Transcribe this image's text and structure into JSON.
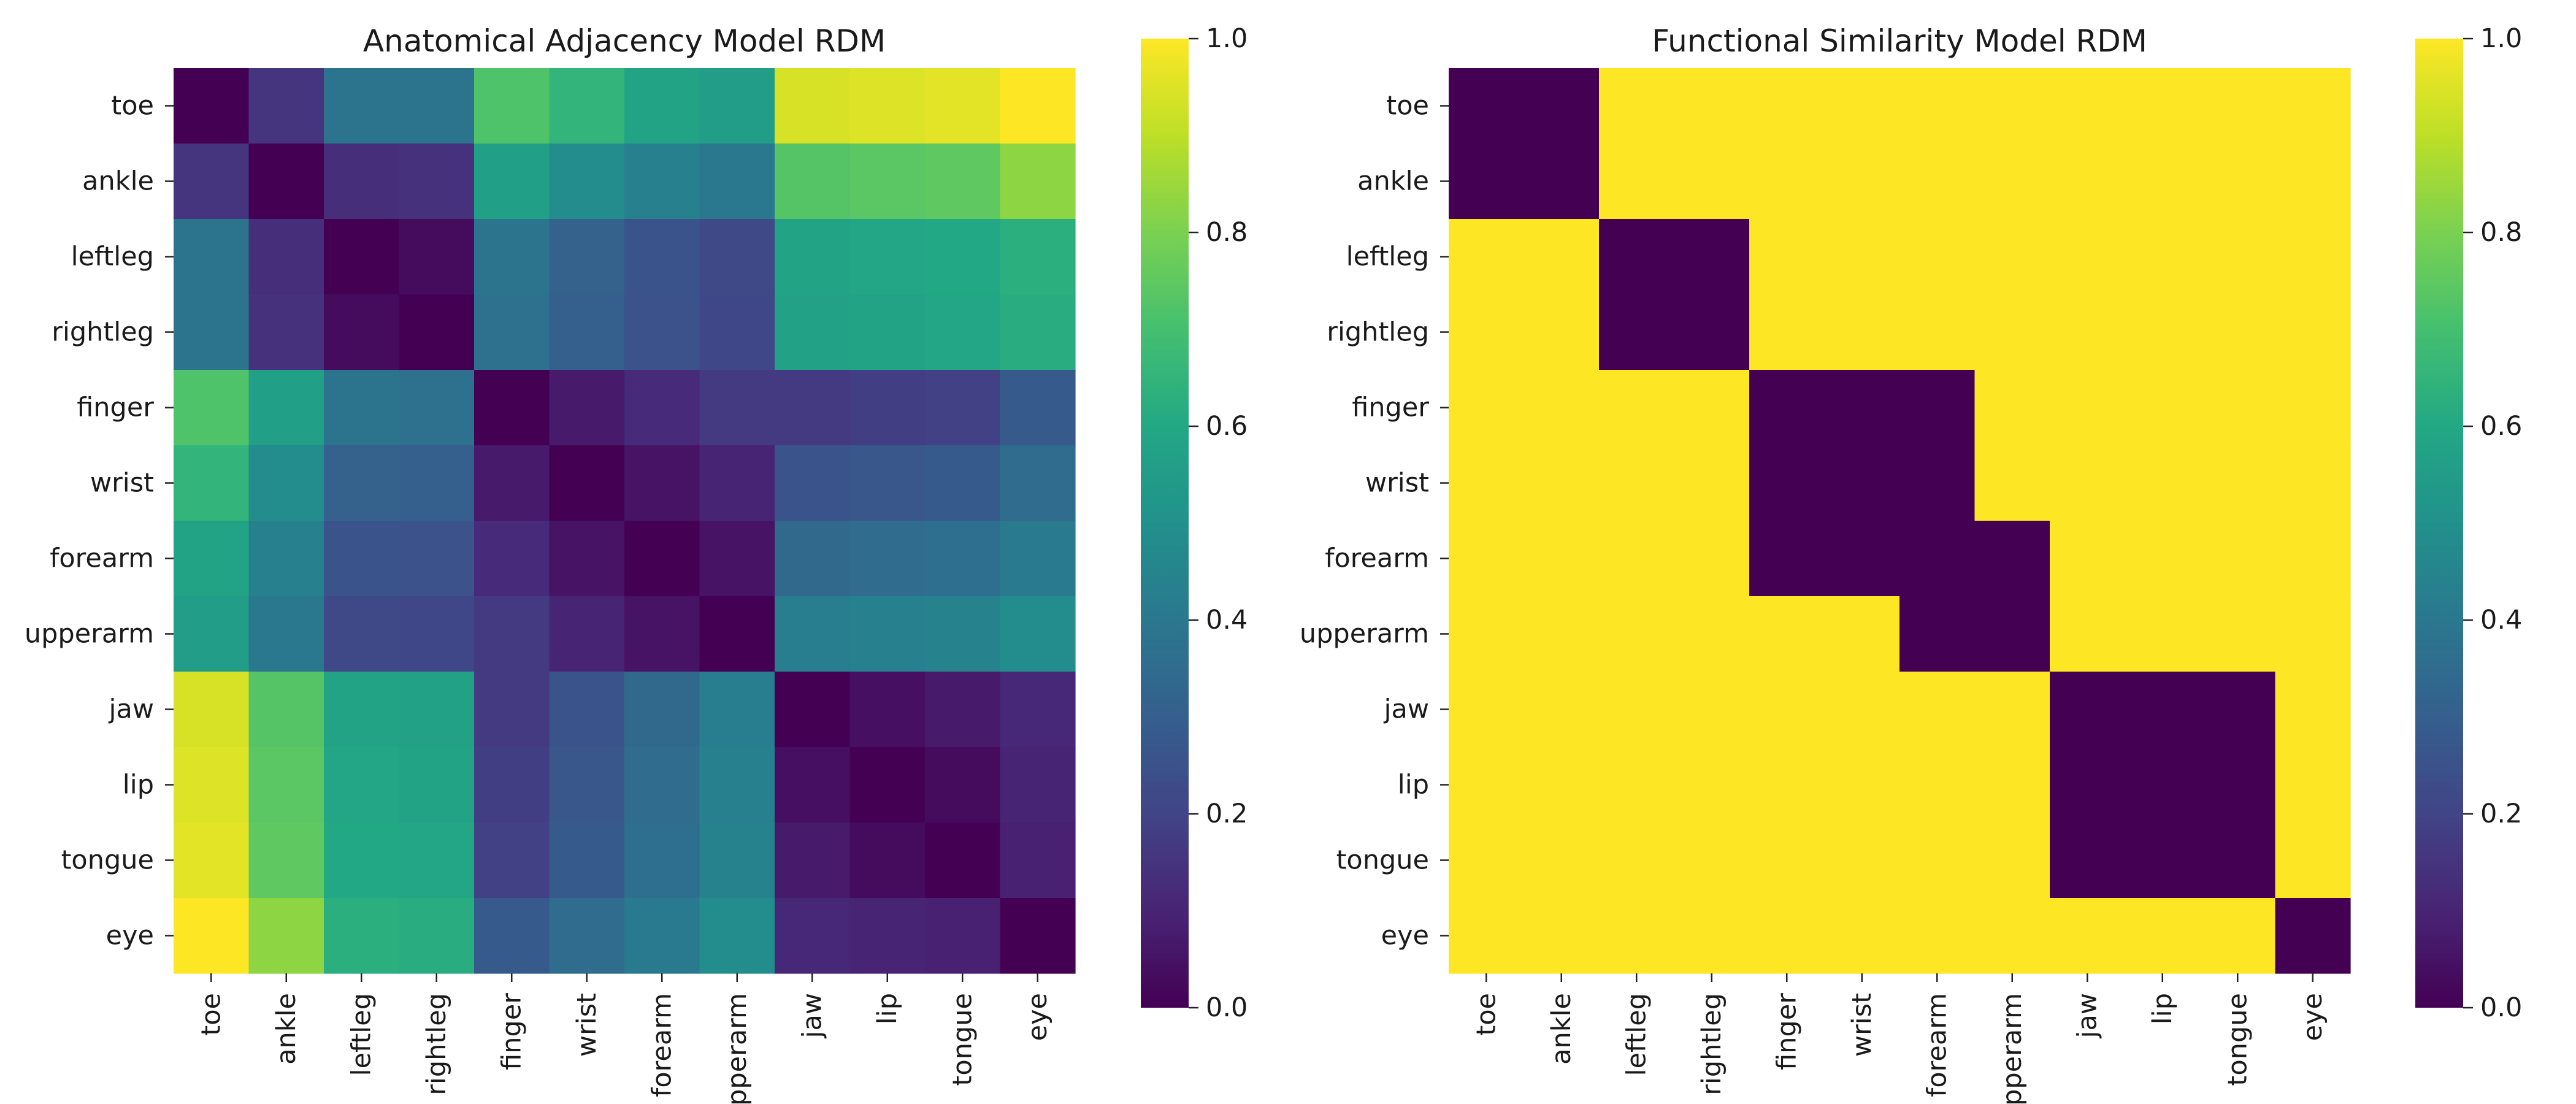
{
  "colormap": "viridis",
  "chart_data": [
    {
      "type": "heatmap",
      "title": "Anatomical Adjacency Model RDM",
      "categories": [
        "toe",
        "ankle",
        "leftleg",
        "rightleg",
        "finger",
        "wrist",
        "forearm",
        "upperarm",
        "jaw",
        "lip",
        "tongue",
        "eye"
      ],
      "values": [
        [
          0.0,
          0.15,
          0.38,
          0.38,
          0.72,
          0.65,
          0.58,
          0.55,
          0.94,
          0.95,
          0.96,
          1.0
        ],
        [
          0.15,
          0.0,
          0.13,
          0.14,
          0.56,
          0.48,
          0.43,
          0.4,
          0.73,
          0.74,
          0.75,
          0.83
        ],
        [
          0.38,
          0.13,
          0.0,
          0.03,
          0.38,
          0.31,
          0.26,
          0.22,
          0.58,
          0.59,
          0.6,
          0.63
        ],
        [
          0.38,
          0.14,
          0.03,
          0.0,
          0.37,
          0.3,
          0.25,
          0.21,
          0.57,
          0.58,
          0.59,
          0.62
        ],
        [
          0.72,
          0.56,
          0.38,
          0.37,
          0.0,
          0.07,
          0.12,
          0.17,
          0.17,
          0.18,
          0.19,
          0.28
        ],
        [
          0.65,
          0.48,
          0.31,
          0.3,
          0.07,
          0.0,
          0.05,
          0.1,
          0.26,
          0.27,
          0.28,
          0.35
        ],
        [
          0.58,
          0.43,
          0.26,
          0.25,
          0.12,
          0.05,
          0.0,
          0.05,
          0.34,
          0.35,
          0.36,
          0.41
        ],
        [
          0.55,
          0.4,
          0.22,
          0.21,
          0.17,
          0.1,
          0.05,
          0.0,
          0.42,
          0.43,
          0.44,
          0.48
        ],
        [
          0.94,
          0.73,
          0.58,
          0.57,
          0.17,
          0.26,
          0.34,
          0.42,
          0.0,
          0.04,
          0.07,
          0.11
        ],
        [
          0.95,
          0.74,
          0.59,
          0.58,
          0.18,
          0.27,
          0.35,
          0.43,
          0.04,
          0.0,
          0.03,
          0.1
        ],
        [
          0.96,
          0.75,
          0.6,
          0.59,
          0.19,
          0.28,
          0.36,
          0.44,
          0.07,
          0.03,
          0.0,
          0.09
        ],
        [
          1.0,
          0.83,
          0.63,
          0.62,
          0.28,
          0.35,
          0.41,
          0.48,
          0.11,
          0.1,
          0.09,
          0.0
        ]
      ],
      "colorbar": {
        "range": [
          0,
          1
        ],
        "ticks": [
          "0.0",
          "0.2",
          "0.4",
          "0.6",
          "0.8",
          "1.0"
        ]
      }
    },
    {
      "type": "heatmap",
      "title": "Functional Similarity Model RDM",
      "categories": [
        "toe",
        "ankle",
        "leftleg",
        "rightleg",
        "finger",
        "wrist",
        "forearm",
        "upperarm",
        "jaw",
        "lip",
        "tongue",
        "eye"
      ],
      "values": [
        [
          0,
          0,
          1,
          1,
          1,
          1,
          1,
          1,
          1,
          1,
          1,
          1
        ],
        [
          0,
          0,
          1,
          1,
          1,
          1,
          1,
          1,
          1,
          1,
          1,
          1
        ],
        [
          1,
          1,
          0,
          0,
          1,
          1,
          1,
          1,
          1,
          1,
          1,
          1
        ],
        [
          1,
          1,
          0,
          0,
          1,
          1,
          1,
          1,
          1,
          1,
          1,
          1
        ],
        [
          1,
          1,
          1,
          1,
          0,
          0,
          0,
          1,
          1,
          1,
          1,
          1
        ],
        [
          1,
          1,
          1,
          1,
          0,
          0,
          0,
          1,
          1,
          1,
          1,
          1
        ],
        [
          1,
          1,
          1,
          1,
          0,
          0,
          0,
          0,
          1,
          1,
          1,
          1
        ],
        [
          1,
          1,
          1,
          1,
          1,
          1,
          0,
          0,
          1,
          1,
          1,
          1
        ],
        [
          1,
          1,
          1,
          1,
          1,
          1,
          1,
          1,
          0,
          0,
          0,
          1
        ],
        [
          1,
          1,
          1,
          1,
          1,
          1,
          1,
          1,
          0,
          0,
          0,
          1
        ],
        [
          1,
          1,
          1,
          1,
          1,
          1,
          1,
          1,
          0,
          0,
          0,
          1
        ],
        [
          1,
          1,
          1,
          1,
          1,
          1,
          1,
          1,
          1,
          1,
          1,
          0
        ]
      ],
      "colorbar": {
        "range": [
          0,
          1
        ],
        "ticks": [
          "0.0",
          "0.2",
          "0.4",
          "0.6",
          "0.8",
          "1.0"
        ]
      }
    }
  ]
}
